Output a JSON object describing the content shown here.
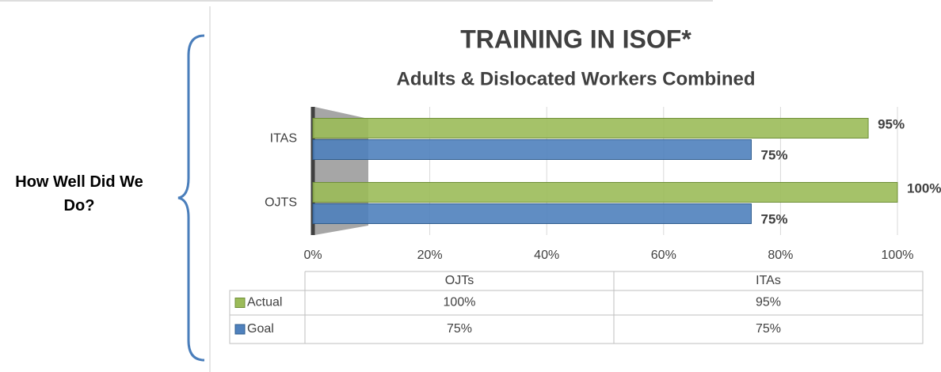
{
  "side_label": "How Well Did We Do?",
  "chart_data": {
    "type": "bar",
    "orientation": "horizontal",
    "title": "TRAINING IN ISOF*",
    "subtitle": "Adults & Dislocated Workers Combined",
    "categories": [
      "OJTs",
      "ITAs"
    ],
    "axis_categories": [
      "OJTS",
      "ITAS"
    ],
    "series": [
      {
        "name": "Actual",
        "color": "#9bbb59",
        "values": [
          100,
          95
        ],
        "value_labels": [
          "100%",
          "95%"
        ]
      },
      {
        "name": "Goal",
        "color": "#4f81bd",
        "values": [
          75,
          75
        ],
        "value_labels": [
          "75%",
          "75%"
        ]
      }
    ],
    "xlim": [
      0,
      100
    ],
    "xticks": [
      {
        "value": 0,
        "label": "0%"
      },
      {
        "value": 20,
        "label": "20%"
      },
      {
        "value": 40,
        "label": "40%"
      },
      {
        "value": 60,
        "label": "60%"
      },
      {
        "value": 80,
        "label": "80%"
      },
      {
        "value": 100,
        "label": "100%"
      }
    ],
    "grid": true,
    "data_table": true
  }
}
